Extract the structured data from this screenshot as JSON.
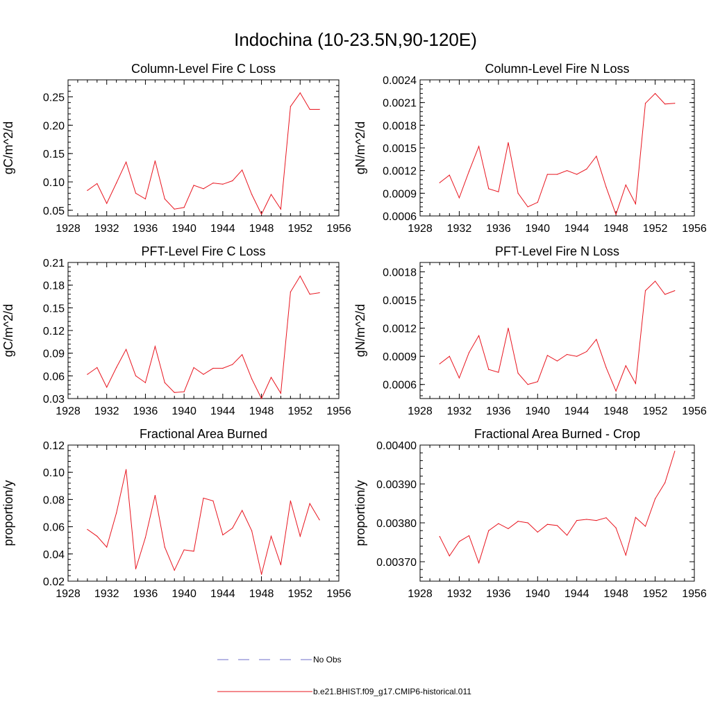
{
  "figure": {
    "title": "Indochina (10-23.5N,90-120E)"
  },
  "legend": {
    "items": [
      {
        "label": "No Obs",
        "color": "#6e6ec8",
        "style": "dashed"
      },
      {
        "label": "b.e21.BHIST.f09_g17.CMIP6-historical.011",
        "color": "#e8141e",
        "style": "solid"
      }
    ]
  },
  "colors": {
    "series": "#e8141e",
    "axis": "#000000"
  },
  "chart_data": [
    {
      "type": "line",
      "title": "Column-Level Fire C Loss",
      "ylabel": "gC/m^2/d",
      "xlim": [
        1928,
        1956
      ],
      "xticks": [
        "1928",
        "1932",
        "1936",
        "1940",
        "1944",
        "1948",
        "1952",
        "1956"
      ],
      "ylim": [
        0.04,
        0.28
      ],
      "yticks": [
        "0.05",
        "0.10",
        "0.15",
        "0.20",
        "0.25"
      ],
      "x": [
        1930,
        1931,
        1932,
        1933,
        1934,
        1935,
        1936,
        1937,
        1938,
        1939,
        1940,
        1941,
        1942,
        1943,
        1944,
        1945,
        1946,
        1947,
        1948,
        1949,
        1950,
        1951,
        1952,
        1953,
        1954
      ],
      "series": [
        {
          "name": "b.e21.BHIST.f09_g17.CMIP6-historical.011",
          "values": [
            0.085,
            0.097,
            0.062,
            0.098,
            0.135,
            0.08,
            0.07,
            0.137,
            0.07,
            0.052,
            0.055,
            0.094,
            0.088,
            0.098,
            0.096,
            0.102,
            0.121,
            0.078,
            0.043,
            0.078,
            0.052,
            0.233,
            0.257,
            0.228,
            0.228
          ]
        }
      ]
    },
    {
      "type": "line",
      "title": "Column-Level Fire N Loss",
      "ylabel": "gN/m^2/d",
      "xlim": [
        1928,
        1956
      ],
      "xticks": [
        "1928",
        "1932",
        "1936",
        "1940",
        "1944",
        "1948",
        "1952",
        "1956"
      ],
      "ylim": [
        0.0006,
        0.0024
      ],
      "yticks": [
        "0.0006",
        "0.0009",
        "0.0012",
        "0.0015",
        "0.0018",
        "0.0021",
        "0.0024"
      ],
      "x": [
        1930,
        1931,
        1932,
        1933,
        1934,
        1935,
        1936,
        1937,
        1938,
        1939,
        1940,
        1941,
        1942,
        1943,
        1944,
        1945,
        1946,
        1947,
        1948,
        1949,
        1950,
        1951,
        1952,
        1953,
        1954
      ],
      "series": [
        {
          "name": "b.e21.BHIST.f09_g17.CMIP6-historical.011",
          "values": [
            0.00104,
            0.00114,
            0.00084,
            0.00119,
            0.00152,
            0.00096,
            0.00092,
            0.00157,
            0.0009,
            0.00072,
            0.00078,
            0.00115,
            0.00115,
            0.0012,
            0.00115,
            0.00122,
            0.00139,
            0.00098,
            0.00062,
            0.00101,
            0.00076,
            0.00209,
            0.00222,
            0.00208,
            0.00209
          ]
        }
      ]
    },
    {
      "type": "line",
      "title": "PFT-Level Fire C Loss",
      "ylabel": "gC/m^2/d",
      "xlim": [
        1928,
        1956
      ],
      "xticks": [
        "1928",
        "1932",
        "1936",
        "1940",
        "1944",
        "1948",
        "1952",
        "1956"
      ],
      "ylim": [
        0.03,
        0.21
      ],
      "yticks": [
        "0.03",
        "0.06",
        "0.09",
        "0.12",
        "0.15",
        "0.18",
        "0.21"
      ],
      "x": [
        1930,
        1931,
        1932,
        1933,
        1934,
        1935,
        1936,
        1937,
        1938,
        1939,
        1940,
        1941,
        1942,
        1943,
        1944,
        1945,
        1946,
        1947,
        1948,
        1949,
        1950,
        1951,
        1952,
        1953,
        1954
      ],
      "series": [
        {
          "name": "b.e21.BHIST.f09_g17.CMIP6-historical.011",
          "values": [
            0.062,
            0.071,
            0.045,
            0.071,
            0.095,
            0.06,
            0.051,
            0.099,
            0.051,
            0.038,
            0.039,
            0.071,
            0.062,
            0.07,
            0.07,
            0.075,
            0.088,
            0.056,
            0.03,
            0.058,
            0.037,
            0.171,
            0.192,
            0.168,
            0.17
          ]
        }
      ]
    },
    {
      "type": "line",
      "title": "PFT-Level Fire N Loss",
      "ylabel": "gN/m^2/d",
      "xlim": [
        1928,
        1956
      ],
      "xticks": [
        "1928",
        "1932",
        "1936",
        "1940",
        "1944",
        "1948",
        "1952",
        "1956"
      ],
      "ylim": [
        0.00045,
        0.0019
      ],
      "yticks": [
        "0.0006",
        "0.0009",
        "0.0012",
        "0.0015",
        "0.0018"
      ],
      "x": [
        1930,
        1931,
        1932,
        1933,
        1934,
        1935,
        1936,
        1937,
        1938,
        1939,
        1940,
        1941,
        1942,
        1943,
        1944,
        1945,
        1946,
        1947,
        1948,
        1949,
        1950,
        1951,
        1952,
        1953,
        1954
      ],
      "series": [
        {
          "name": "b.e21.BHIST.f09_g17.CMIP6-historical.011",
          "values": [
            0.00082,
            0.0009,
            0.00067,
            0.00094,
            0.00112,
            0.00076,
            0.00073,
            0.0012,
            0.00072,
            0.0006,
            0.00063,
            0.00091,
            0.00085,
            0.00092,
            0.0009,
            0.00095,
            0.00108,
            0.00078,
            0.00053,
            0.0008,
            0.00061,
            0.0016,
            0.0017,
            0.00156,
            0.0016
          ]
        }
      ]
    },
    {
      "type": "line",
      "title": "Fractional Area Burned",
      "ylabel": "proportion/y",
      "xlim": [
        1928,
        1956
      ],
      "xticks": [
        "1928",
        "1932",
        "1936",
        "1940",
        "1944",
        "1948",
        "1952",
        "1956"
      ],
      "ylim": [
        0.02,
        0.12
      ],
      "yticks": [
        "0.02",
        "0.04",
        "0.06",
        "0.08",
        "0.10",
        "0.12"
      ],
      "x": [
        1930,
        1931,
        1932,
        1933,
        1934,
        1935,
        1936,
        1937,
        1938,
        1939,
        1940,
        1941,
        1942,
        1943,
        1944,
        1945,
        1946,
        1947,
        1948,
        1949,
        1950,
        1951,
        1952,
        1953,
        1954
      ],
      "series": [
        {
          "name": "b.e21.BHIST.f09_g17.CMIP6-historical.011",
          "values": [
            0.058,
            0.053,
            0.045,
            0.07,
            0.102,
            0.029,
            0.052,
            0.083,
            0.045,
            0.028,
            0.043,
            0.042,
            0.081,
            0.079,
            0.054,
            0.059,
            0.072,
            0.057,
            0.025,
            0.053,
            0.032,
            0.079,
            0.053,
            0.077,
            0.065
          ]
        }
      ]
    },
    {
      "type": "line",
      "title": "Fractional Area Burned - Crop",
      "ylabel": "proportion/y",
      "xlim": [
        1928,
        1956
      ],
      "xticks": [
        "1928",
        "1932",
        "1936",
        "1940",
        "1944",
        "1948",
        "1952",
        "1956"
      ],
      "ylim": [
        0.00365,
        0.004
      ],
      "yticks": [
        "0.00370",
        "0.00380",
        "0.00390",
        "0.00400"
      ],
      "x": [
        1930,
        1931,
        1932,
        1933,
        1934,
        1935,
        1936,
        1937,
        1938,
        1939,
        1940,
        1941,
        1942,
        1943,
        1944,
        1945,
        1946,
        1947,
        1948,
        1949,
        1950,
        1951,
        1952,
        1953,
        1954
      ],
      "series": [
        {
          "name": "b.e21.BHIST.f09_g17.CMIP6-historical.011",
          "values": [
            0.003765,
            0.003715,
            0.003752,
            0.003767,
            0.003697,
            0.00378,
            0.003798,
            0.003785,
            0.003804,
            0.0038,
            0.003776,
            0.003796,
            0.003793,
            0.003768,
            0.003806,
            0.003809,
            0.003806,
            0.003813,
            0.003787,
            0.003717,
            0.003814,
            0.003791,
            0.003862,
            0.003903,
            0.003984
          ]
        }
      ]
    }
  ]
}
